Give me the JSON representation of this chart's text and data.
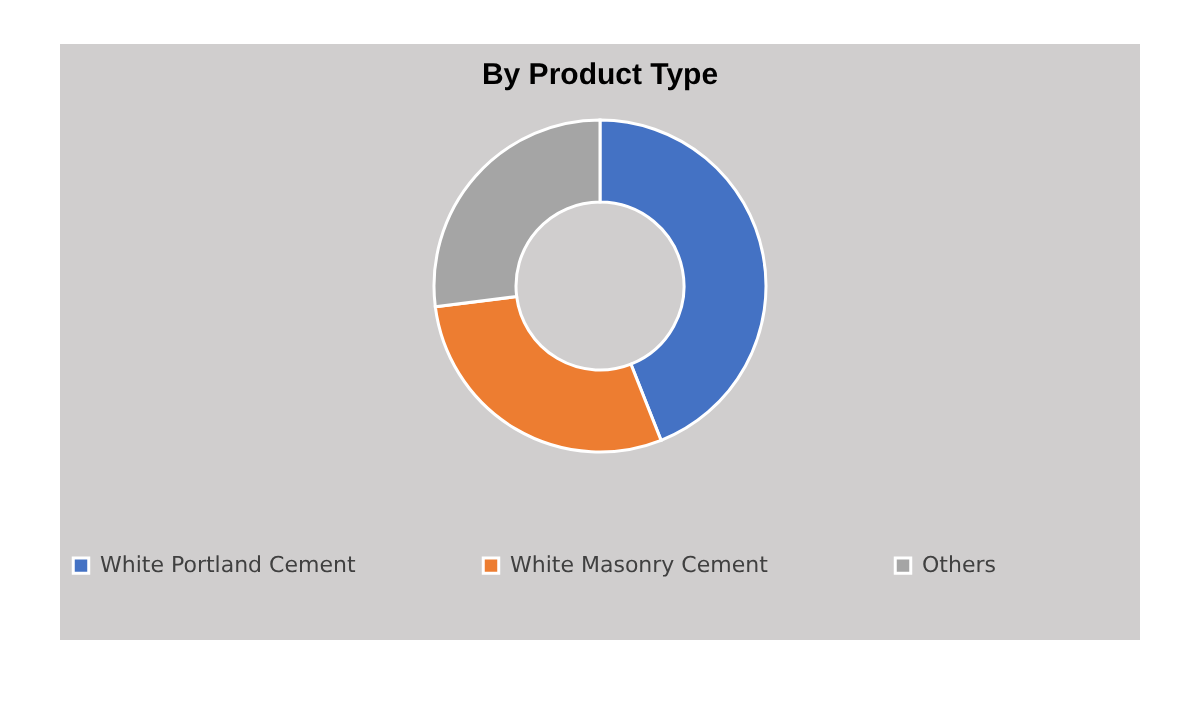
{
  "chart_data": {
    "type": "donut",
    "title": "By Product Type",
    "categories": [
      "White Portland Cement",
      "White Masonry Cement",
      "Others"
    ],
    "values": [
      44,
      29,
      27
    ],
    "colors": [
      "#4472c4",
      "#ed7d31",
      "#a5a5a5"
    ],
    "legend": "bottom"
  }
}
